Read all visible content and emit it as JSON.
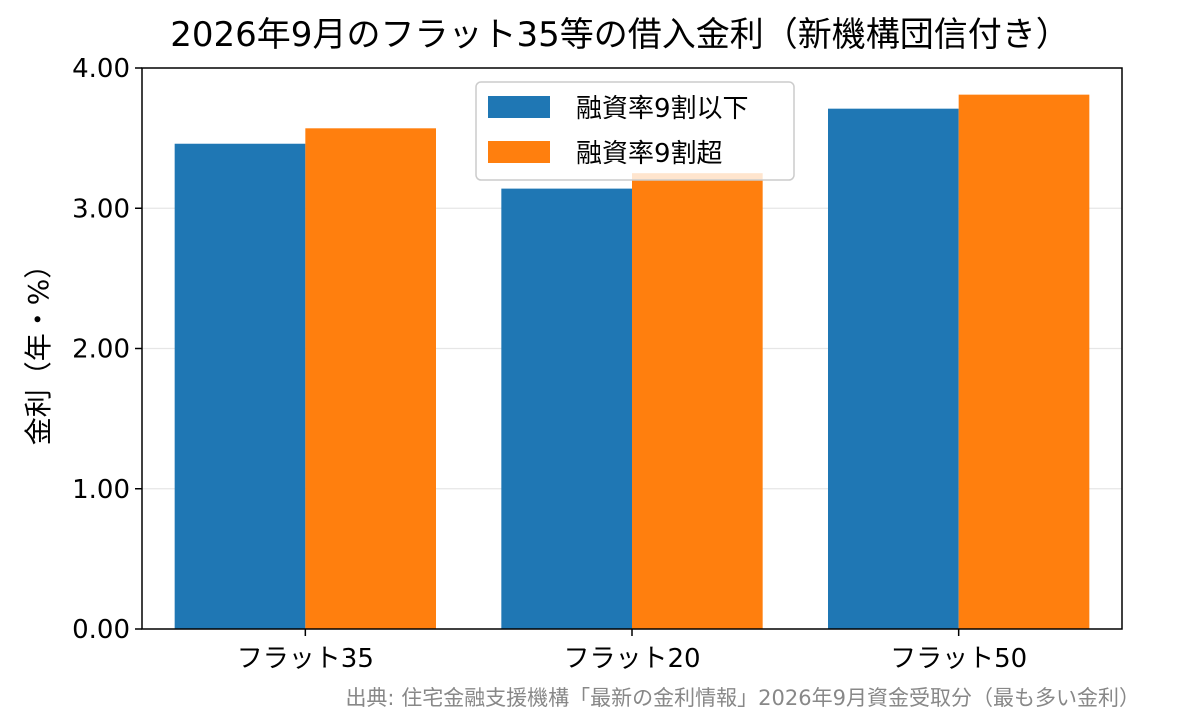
{
  "title": "2026年9月のフラット35等の借入金利（新機構団信付き）",
  "source_note": "出典: 住宅金融支援機構「最新の金利情報」2026年9月資金受取分（最も多い金利）",
  "colors": {
    "series_1": "#1f77b4",
    "series_2": "#ff7f0e",
    "grid": "#e6e6e6",
    "axis": "#000000",
    "source": "#888888"
  },
  "chart_data": {
    "type": "bar",
    "title": "2026年9月のフラット35等の借入金利（新機構団信付き）",
    "xlabel": "",
    "ylabel": "金利（年・%）",
    "categories": [
      "フラット35",
      "フラット20",
      "フラット50"
    ],
    "series": [
      {
        "name": "融資率9割以下",
        "values": [
          3.46,
          3.14,
          3.71
        ]
      },
      {
        "name": "融資率9割超",
        "values": [
          3.57,
          3.25,
          3.81
        ]
      }
    ],
    "ylim": [
      0,
      4
    ],
    "yticks": [
      "0.00",
      "1.00",
      "2.00",
      "3.00",
      "4.00"
    ],
    "grid": "y",
    "legend_position": "top-center"
  }
}
